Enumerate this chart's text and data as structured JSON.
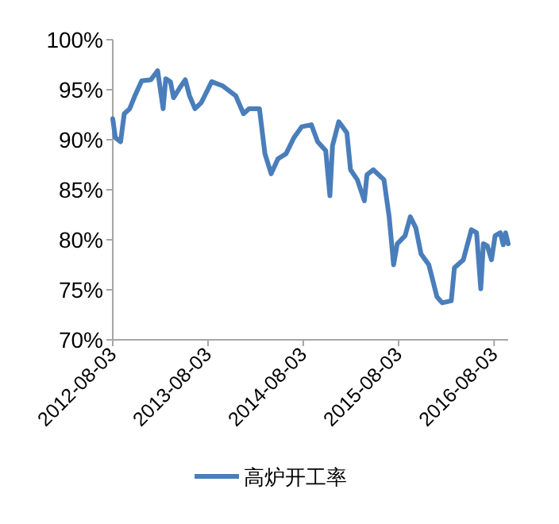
{
  "chart_data": {
    "type": "line",
    "x": [
      "2012-08-03",
      "2012-08-13",
      "2012-09-02",
      "2012-09-16",
      "2012-10-07",
      "2012-10-27",
      "2012-11-22",
      "2012-12-27",
      "2013-01-22",
      "2013-02-12",
      "2013-02-22",
      "2013-03-12",
      "2013-03-24",
      "2013-04-17",
      "2013-05-08",
      "2013-05-24",
      "2013-06-14",
      "2013-07-08",
      "2013-08-17",
      "2013-09-27",
      "2013-11-17",
      "2013-12-17",
      "2014-01-07",
      "2014-02-16",
      "2014-03-09",
      "2014-04-02",
      "2014-04-28",
      "2014-05-29",
      "2014-06-28",
      "2014-07-28",
      "2014-09-03",
      "2014-09-27",
      "2014-10-28",
      "2014-11-13",
      "2014-11-23",
      "2014-12-17",
      "2015-01-17",
      "2015-01-31",
      "2015-02-26",
      "2015-03-25",
      "2015-04-04",
      "2015-04-28",
      "2015-06-08",
      "2015-06-28",
      "2015-07-15",
      "2015-07-29",
      "2015-08-28",
      "2015-09-17",
      "2015-10-08",
      "2015-10-28",
      "2015-11-27",
      "2015-12-28",
      "2016-01-17",
      "2016-02-21",
      "2016-03-04",
      "2016-04-07",
      "2016-05-08",
      "2016-05-28",
      "2016-06-13",
      "2016-06-23",
      "2016-07-08",
      "2016-07-24",
      "2016-08-07",
      "2016-08-27",
      "2016-09-07",
      "2016-09-16",
      "2016-09-26"
    ],
    "series": [
      {
        "name": "高炉开工率",
        "color": "#4a7ebb",
        "values": [
          92.1,
          90.2,
          89.8,
          92.6,
          93.1,
          94.4,
          95.9,
          96.0,
          96.9,
          93.1,
          96.1,
          95.8,
          94.2,
          95.2,
          96.0,
          94.4,
          93.1,
          93.7,
          95.8,
          95.4,
          94.4,
          92.6,
          93.1,
          93.1,
          88.6,
          86.6,
          88.1,
          88.6,
          90.2,
          91.3,
          91.5,
          89.8,
          88.9,
          84.4,
          89.4,
          91.8,
          90.7,
          87.0,
          86.0,
          83.9,
          86.5,
          87.0,
          86.0,
          82.3,
          77.5,
          79.6,
          80.4,
          82.3,
          81.2,
          78.6,
          77.5,
          74.3,
          73.7,
          73.9,
          77.2,
          78.0,
          81.0,
          80.7,
          75.1,
          79.6,
          79.4,
          78.0,
          80.4,
          80.7,
          79.5,
          80.7,
          79.6
        ]
      }
    ],
    "xlim": [
      "2012-08-03",
      "2016-09-26"
    ],
    "xticks": [
      "2012-08-03",
      "2013-08-03",
      "2014-08-03",
      "2015-08-03",
      "2016-08-03"
    ],
    "ylim": [
      70,
      100
    ],
    "yticks": [
      {
        "value": 70,
        "label": "70%"
      },
      {
        "value": 75,
        "label": "75%"
      },
      {
        "value": 80,
        "label": "80%"
      },
      {
        "value": 85,
        "label": "85%"
      },
      {
        "value": 90,
        "label": "90%"
      },
      {
        "value": 95,
        "label": "95%"
      },
      {
        "value": 100,
        "label": "100%"
      }
    ],
    "legend": "bottom"
  }
}
